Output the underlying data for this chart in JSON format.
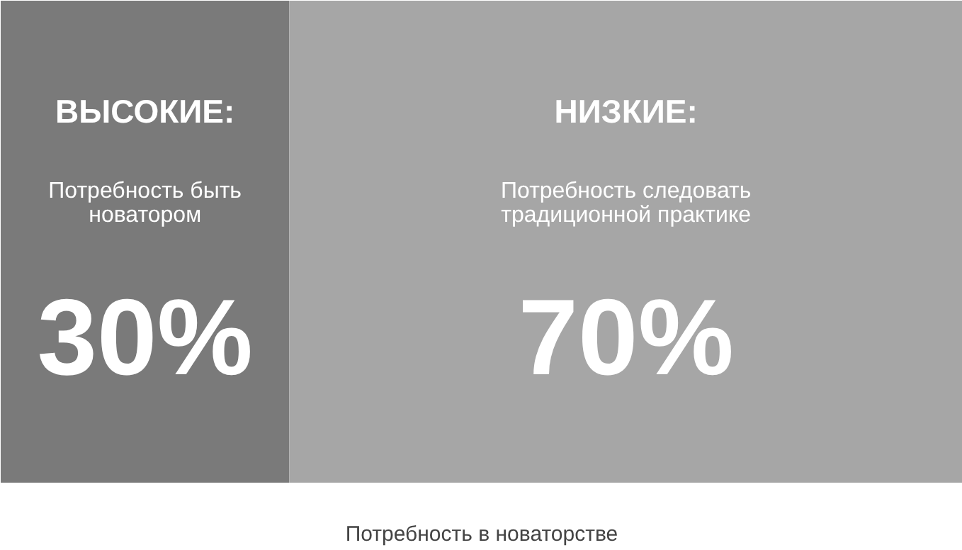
{
  "chart_data": {
    "type": "bar",
    "orientation": "horizontal",
    "stacked": true,
    "xlim": [
      0,
      100
    ],
    "tick_labels": false,
    "categories": [
      null
    ],
    "xlabel": "Потребность в новаторстве",
    "series": [
      {
        "name": "ВЫСОКИЕ:",
        "color": "#7a7a7a",
        "values": [
          30
        ],
        "value_labels": [
          "30%"
        ]
      },
      {
        "name": "НИЗКИЕ:",
        "color": "#a6a6a6",
        "values": [
          70
        ],
        "value_labels": [
          "70%"
        ]
      }
    ],
    "annotations": [
      "Потребность быть\nноватором",
      "Потребность следовать\nтрадиционной практике"
    ]
  }
}
